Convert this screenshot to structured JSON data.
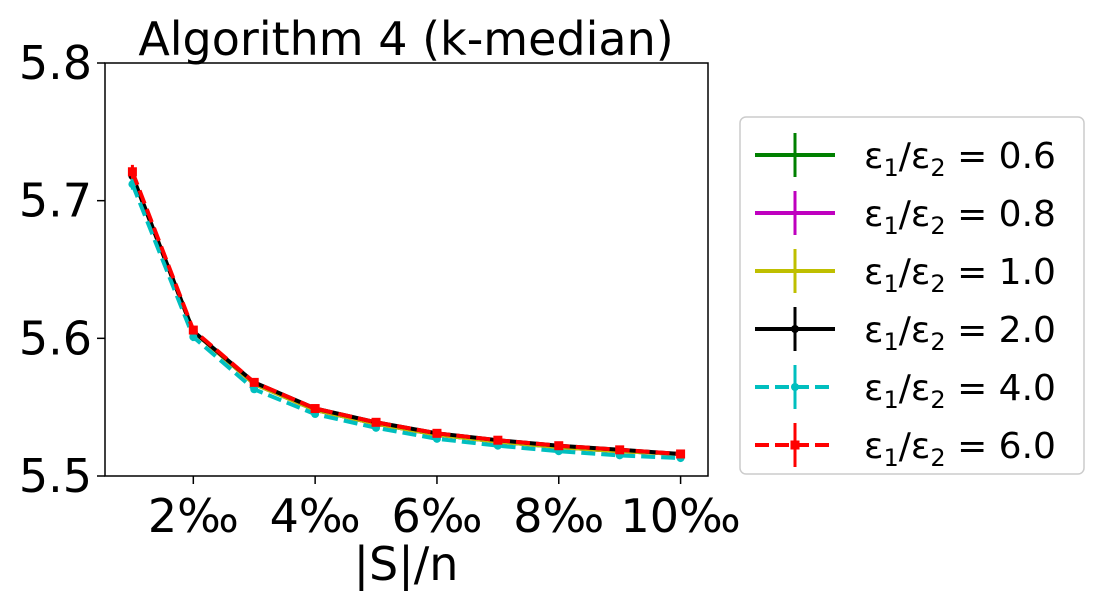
{
  "chart_data": {
    "type": "line",
    "title": "Algorithm 4 (k-median)",
    "xlabel": "|S|/n",
    "ylabel": "",
    "x": [
      1,
      2,
      3,
      4,
      5,
      6,
      7,
      8,
      9,
      10
    ],
    "xlim": [
      0.55,
      10.45
    ],
    "ylim": [
      5.5,
      5.8
    ],
    "xticks": [
      {
        "value": 2,
        "label": "2‰"
      },
      {
        "value": 4,
        "label": "4‰"
      },
      {
        "value": 6,
        "label": "6‰"
      },
      {
        "value": 8,
        "label": "8‰"
      },
      {
        "value": 10,
        "label": "10‰"
      }
    ],
    "yticks": [
      {
        "value": 5.5,
        "label": "5.5"
      },
      {
        "value": 5.6,
        "label": "5.6"
      },
      {
        "value": 5.7,
        "label": "5.7"
      },
      {
        "value": 5.8,
        "label": "5.8"
      }
    ],
    "grid": false,
    "legend_position": "outside-right",
    "series": [
      {
        "name": "ε1/ε2 = 0.6",
        "color": "#008000",
        "dash": "solid",
        "marker": "none",
        "values": [
          5.718,
          5.605,
          5.567,
          5.548,
          5.538,
          5.53,
          5.525,
          5.521,
          5.518,
          5.516
        ],
        "err": [
          0.004,
          0.003,
          0.002,
          0.002,
          0.002,
          0.002,
          0.002,
          0.002,
          0.002,
          0.002
        ]
      },
      {
        "name": "ε1/ε2 = 0.8",
        "color": "#bf00bf",
        "dash": "solid",
        "marker": "small-dot",
        "values": [
          5.718,
          5.605,
          5.567,
          5.548,
          5.538,
          5.53,
          5.525,
          5.521,
          5.518,
          5.516
        ],
        "err": [
          0.004,
          0.003,
          0.002,
          0.002,
          0.002,
          0.002,
          0.002,
          0.002,
          0.002,
          0.002
        ]
      },
      {
        "name": "ε1/ε2 = 1.0",
        "color": "#bfbf00",
        "dash": "solid",
        "marker": "none",
        "values": [
          5.718,
          5.605,
          5.567,
          5.548,
          5.538,
          5.53,
          5.525,
          5.521,
          5.518,
          5.516
        ],
        "err": [
          0.004,
          0.003,
          0.002,
          0.002,
          0.002,
          0.002,
          0.002,
          0.002,
          0.002,
          0.002
        ]
      },
      {
        "name": "ε1/ε2 = 2.0",
        "color": "#000000",
        "dash": "solid",
        "marker": "dot",
        "values": [
          5.718,
          5.605,
          5.568,
          5.549,
          5.539,
          5.531,
          5.526,
          5.522,
          5.519,
          5.516
        ],
        "err": [
          0.004,
          0.003,
          0.002,
          0.002,
          0.002,
          0.002,
          0.002,
          0.002,
          0.002,
          0.002
        ]
      },
      {
        "name": "ε1/ε2 = 4.0",
        "color": "#00bfbf",
        "dash": "dashed",
        "marker": "dot",
        "values": [
          5.712,
          5.601,
          5.563,
          5.545,
          5.535,
          5.527,
          5.522,
          5.518,
          5.515,
          5.513
        ],
        "err": [
          0.004,
          0.003,
          0.002,
          0.002,
          0.002,
          0.002,
          0.002,
          0.002,
          0.002,
          0.002
        ]
      },
      {
        "name": "ε1/ε2 = 6.0",
        "color": "#ff0000",
        "dash": "dashed",
        "marker": "square",
        "values": [
          5.721,
          5.606,
          5.568,
          5.549,
          5.539,
          5.531,
          5.526,
          5.522,
          5.519,
          5.516
        ],
        "err": [
          0.005,
          0.003,
          0.002,
          0.002,
          0.002,
          0.002,
          0.002,
          0.002,
          0.002,
          0.002
        ]
      }
    ],
    "legend": [
      {
        "prefix": "ε",
        "sub1": "1",
        "slash": "/ε",
        "sub2": "2",
        "value": " = 0.6"
      },
      {
        "prefix": "ε",
        "sub1": "1",
        "slash": "/ε",
        "sub2": "2",
        "value": " = 0.8"
      },
      {
        "prefix": "ε",
        "sub1": "1",
        "slash": "/ε",
        "sub2": "2",
        "value": " = 1.0"
      },
      {
        "prefix": "ε",
        "sub1": "1",
        "slash": "/ε",
        "sub2": "2",
        "value": " = 2.0"
      },
      {
        "prefix": "ε",
        "sub1": "1",
        "slash": "/ε",
        "sub2": "2",
        "value": " = 4.0"
      },
      {
        "prefix": "ε",
        "sub1": "1",
        "slash": "/ε",
        "sub2": "2",
        "value": " = 6.0"
      }
    ]
  }
}
